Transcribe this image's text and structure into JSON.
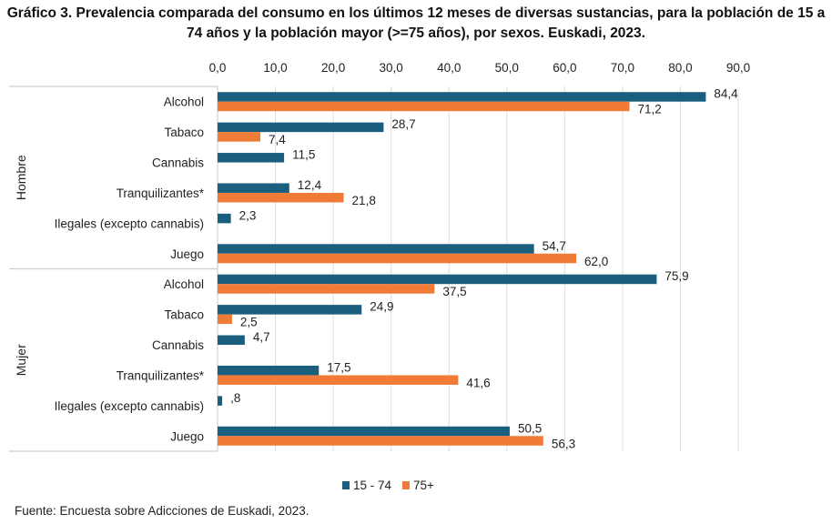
{
  "title": "Gráfico 3. Prevalencia comparada del consumo en los últimos 12 meses de diversas sustancias, para la población de 15 a 74 años y la población mayor (>=75 años), por sexos. Euskadi, 2023.",
  "source": "Fuente: Encuesta sobre Adicciones de Euskadi, 2023.",
  "chart_data": {
    "type": "bar",
    "orientation": "horizontal",
    "title": "Gráfico 3. Prevalencia comparada del consumo en los últimos 12 meses de diversas sustancias, para la población de 15 a 74 años y la población mayor (>=75 años), por sexos. Euskadi, 2023.",
    "groups": [
      {
        "name": "Hombre",
        "categories": [
          "Alcohol",
          "Tabaco",
          "Cannabis",
          "Tranquilizantes*",
          "Ilegales (excepto cannabis)",
          "Juego"
        ],
        "series": [
          {
            "name": "15 - 74",
            "values": [
              84.4,
              28.7,
              11.5,
              12.4,
              2.3,
              54.7
            ],
            "labels": [
              "84,4",
              "28,7",
              "11,5",
              "12,4",
              "2,3",
              "54,7"
            ]
          },
          {
            "name": "75+",
            "values": [
              71.2,
              7.4,
              null,
              21.8,
              null,
              62.0
            ],
            "labels": [
              "71,2",
              "7,4",
              null,
              "21,8",
              null,
              "62,0"
            ]
          }
        ]
      },
      {
        "name": "Mujer",
        "categories": [
          "Alcohol",
          "Tabaco",
          "Cannabis",
          "Tranquilizantes*",
          "Ilegales (excepto cannabis)",
          "Juego"
        ],
        "series": [
          {
            "name": "15 - 74",
            "values": [
              75.9,
              24.9,
              4.7,
              17.5,
              0.8,
              50.5
            ],
            "labels": [
              "75,9",
              "24,9",
              "4,7",
              "17,5",
              ",8",
              "50,5"
            ]
          },
          {
            "name": "75+",
            "values": [
              37.5,
              2.5,
              null,
              41.6,
              null,
              56.3
            ],
            "labels": [
              "37,5",
              "2,5",
              null,
              "41,6",
              null,
              "56,3"
            ]
          }
        ]
      }
    ],
    "xlim": [
      0,
      90
    ],
    "xticks": [
      0,
      10,
      20,
      30,
      40,
      50,
      60,
      70,
      80,
      90
    ],
    "xtick_labels": [
      "0,0",
      "10,0",
      "20,0",
      "30,0",
      "40,0",
      "50,0",
      "60,0",
      "70,0",
      "80,0",
      "90,0"
    ],
    "x_axis_position": "top",
    "grid": true,
    "legend": {
      "position": "bottom",
      "entries": [
        "15 - 74",
        "75+"
      ]
    },
    "colors": {
      "15 - 74": "#1b5f7e",
      "75+": "#f07b36"
    }
  }
}
